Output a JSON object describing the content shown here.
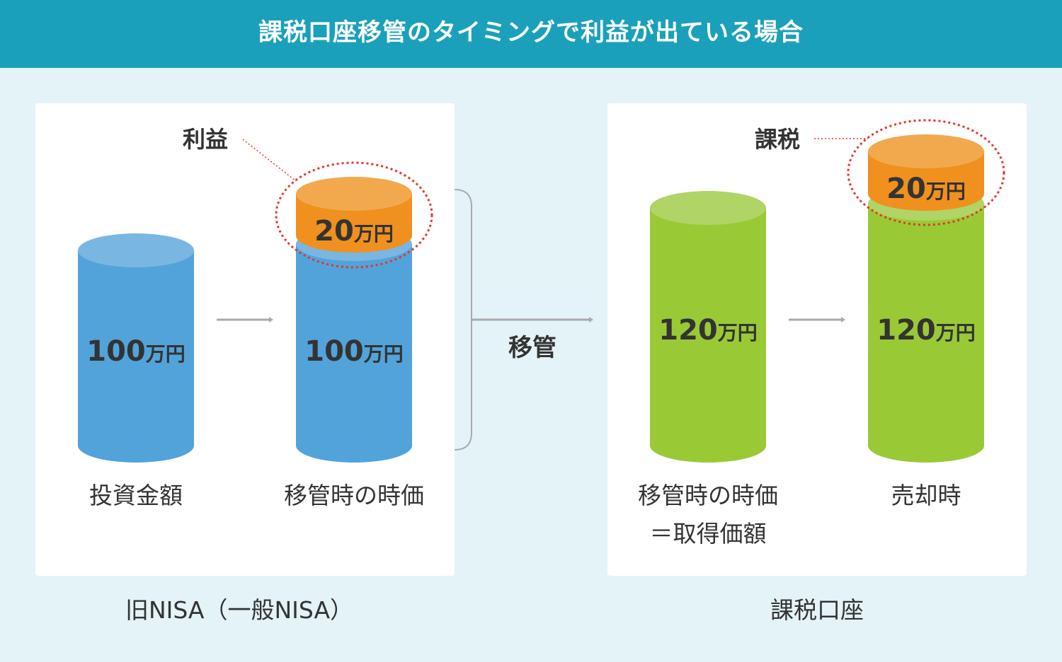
{
  "title": "課税口座移管のタイミングで利益が出ている場合",
  "left_panel": {
    "caption": "旧NISA（一般NISA）",
    "annotation": "利益",
    "cylinder1": {
      "value": "100",
      "unit": "万円",
      "label": "投資金額",
      "color": "#52a3da"
    },
    "cylinder2": {
      "value": "100",
      "unit": "万円",
      "label": "移管時の時価",
      "color": "#52a3da",
      "top_value": "20",
      "top_unit": "万円",
      "top_color": "#f0901e"
    }
  },
  "transfer_label": "移管",
  "right_panel": {
    "caption": "課税口座",
    "annotation": "課税",
    "cylinder1": {
      "value": "120",
      "unit": "万円",
      "label": "移管時の時価",
      "label2": "＝取得価額",
      "color": "#9ac936"
    },
    "cylinder2": {
      "value": "120",
      "unit": "万円",
      "label": "売却時",
      "color": "#9ac936",
      "top_value": "20",
      "top_unit": "万円",
      "top_color": "#f0901e"
    }
  },
  "highlight_color": "#e8332a"
}
